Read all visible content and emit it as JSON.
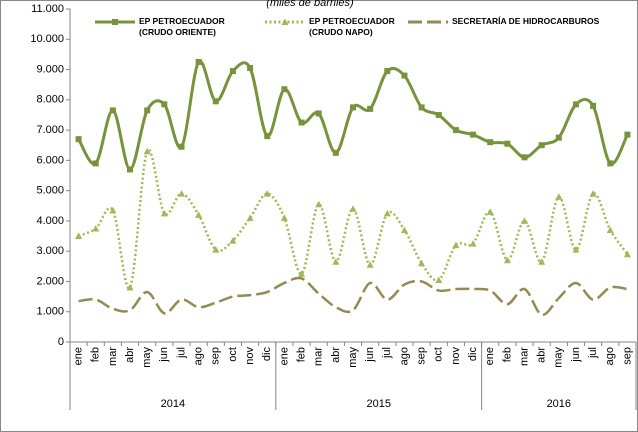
{
  "chart_data": {
    "type": "line",
    "subtitle": "(miles de barriles)",
    "categories": [
      "ene",
      "feb",
      "mar",
      "abr",
      "may",
      "jun",
      "jul",
      "ago",
      "sep",
      "oct",
      "nov",
      "dic",
      "ene",
      "feb",
      "mar",
      "abr",
      "may",
      "jun",
      "jul",
      "ago",
      "sep",
      "oct",
      "nov",
      "dic",
      "ene",
      "feb",
      "mar",
      "abr",
      "may",
      "jun",
      "jul",
      "ago",
      "sep"
    ],
    "category_groups": [
      "2014",
      "2015",
      "2016"
    ],
    "series": [
      {
        "name": "EP PETROECUADOR (CRUDO ORIENTE)",
        "color": "#77933c",
        "style": "solid",
        "marker": "square",
        "values": [
          6700,
          5900,
          7650,
          5700,
          7650,
          7850,
          6450,
          9250,
          7950,
          8950,
          9050,
          6800,
          8350,
          7250,
          7550,
          6250,
          7750,
          7700,
          8950,
          8800,
          7750,
          7500,
          7000,
          6850,
          6600,
          6550,
          6100,
          6500,
          6750,
          7850,
          7800,
          5900,
          6850
        ]
      },
      {
        "name": "EP PETROECUADOR (CRUDO NAPO)",
        "color": "#9bbb59",
        "style": "dotted",
        "marker": "triangle",
        "values": [
          3500,
          3750,
          4350,
          1800,
          6300,
          4250,
          4900,
          4200,
          3050,
          3350,
          4100,
          4900,
          4100,
          2250,
          4550,
          2650,
          4400,
          2550,
          4250,
          3700,
          2600,
          2050,
          3200,
          3250,
          4300,
          2700,
          4000,
          2650,
          4800,
          3050,
          4900,
          3700,
          2900
        ]
      },
      {
        "name": "SECRETARÍA DE HIDROCARBUROS",
        "color": "#948a54",
        "style": "dashed",
        "marker": "none",
        "values": [
          1350,
          1400,
          1100,
          1050,
          1650,
          950,
          1400,
          1150,
          1300,
          1500,
          1550,
          1650,
          1950,
          2100,
          1600,
          1150,
          1050,
          1950,
          1400,
          1900,
          2000,
          1700,
          1750,
          1750,
          1700,
          1250,
          1750,
          900,
          1450,
          1950,
          1400,
          1800,
          1750
        ]
      }
    ],
    "ylim": [
      0,
      11000
    ],
    "yticks": [
      0,
      {
        "value": 1000,
        "label": "1.000"
      },
      {
        "value": 2000,
        "label": "2.000"
      },
      {
        "value": 3000,
        "label": "3.000"
      },
      {
        "value": 4000,
        "label": "4.000"
      },
      {
        "value": 5000,
        "label": "5.000"
      },
      {
        "value": 6000,
        "label": "6.000"
      },
      {
        "value": 7000,
        "label": "7.000"
      },
      {
        "value": 8000,
        "label": "8.000"
      },
      {
        "value": 9000,
        "label": "9.000"
      },
      {
        "value": 10000,
        "label": "10.000"
      },
      {
        "value": 11000,
        "label": "11.000"
      }
    ],
    "smooth": true
  }
}
